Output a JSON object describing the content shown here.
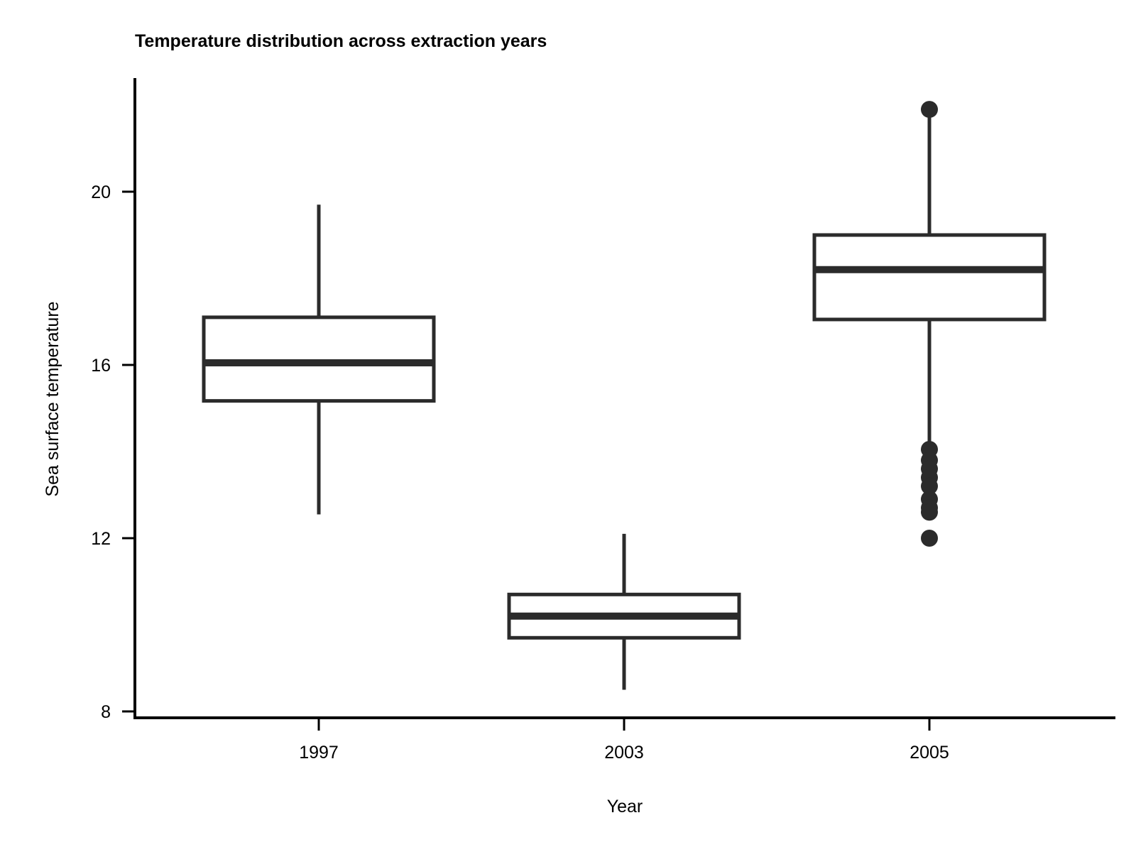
{
  "chart_data": {
    "type": "box",
    "title": "Temperature distribution across extraction years",
    "xlabel": "Year",
    "ylabel": "Sea surface temperature",
    "categories": [
      "1997",
      "2003",
      "2005"
    ],
    "ylim": [
      7.85,
      22.6
    ],
    "yticks": [
      8,
      12,
      16,
      20
    ],
    "grid": false,
    "boxes": [
      {
        "category": "1997",
        "whisker_low": 12.55,
        "q1": 15.17,
        "median": 16.05,
        "q3": 17.1,
        "whisker_high": 19.7,
        "outliers": []
      },
      {
        "category": "2003",
        "whisker_low": 8.5,
        "q1": 9.7,
        "median": 10.2,
        "q3": 10.7,
        "whisker_high": 12.1,
        "outliers": []
      },
      {
        "category": "2005",
        "whisker_low": 14.1,
        "q1": 17.05,
        "median": 18.2,
        "q3": 19.0,
        "whisker_high": 21.9,
        "outliers": [
          21.9,
          14.05,
          13.8,
          13.6,
          13.4,
          13.2,
          12.9,
          12.7,
          12.6,
          12.0
        ]
      }
    ],
    "colors": {
      "stroke": "#2b2b2b",
      "axis": "#000000",
      "background": "#ffffff"
    }
  }
}
